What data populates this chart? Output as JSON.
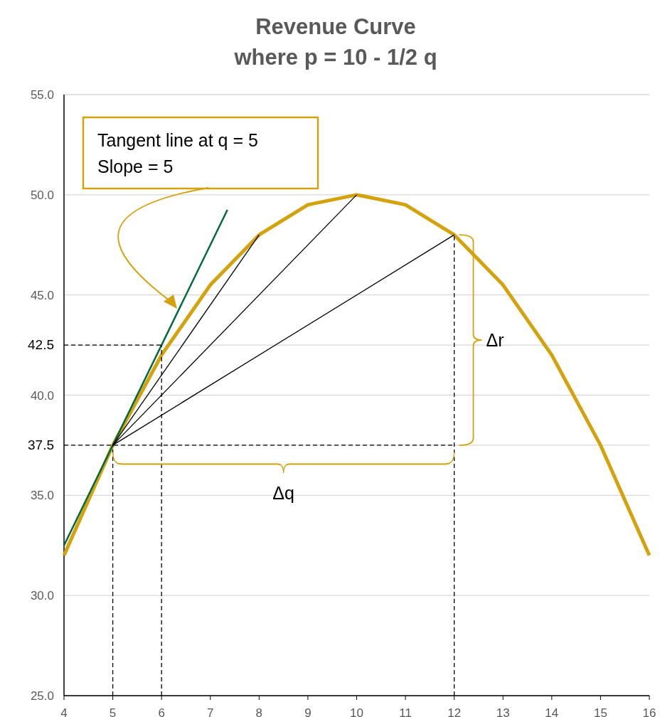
{
  "chart_data": {
    "type": "line",
    "title": "Revenue Curve",
    "subtitle": "where p = 10 - 1/2 q",
    "x": [
      4,
      5,
      6,
      7,
      8,
      9,
      10,
      11,
      12,
      13,
      14,
      15,
      16
    ],
    "series": [
      {
        "color": "#d4a20c",
        "values": [
          32,
          37.5,
          42,
          45.5,
          48,
          49.5,
          50,
          49.5,
          48,
          45.5,
          42,
          37.5,
          32
        ]
      },
      {
        "color": "#00693e",
        "x": [
          4,
          7.35
        ],
        "values": [
          32.5,
          49.25
        ]
      },
      {
        "color": "#000000",
        "x": [
          5,
          8
        ],
        "values": [
          37.5,
          48
        ]
      },
      {
        "color": "#000000",
        "x": [
          5,
          10
        ],
        "values": [
          37.5,
          50
        ]
      },
      {
        "color": "#000000",
        "x": [
          5,
          12
        ],
        "values": [
          37.5,
          48
        ]
      },
      {
        "color": "#000000",
        "x": [
          5,
          5
        ],
        "values": [
          25,
          37.5
        ],
        "line_style": "dashed"
      },
      {
        "color": "#000000",
        "x": [
          6,
          6
        ],
        "values": [
          25,
          42.5
        ],
        "line_style": "dashed"
      },
      {
        "color": "#000000",
        "x": [
          12,
          12
        ],
        "values": [
          25,
          48
        ],
        "line_style": "dashed"
      },
      {
        "color": "#000000",
        "x": [
          4,
          6
        ],
        "values": [
          42.5,
          42.5
        ],
        "line_style": "dashed"
      },
      {
        "color": "#000000",
        "x": [
          4,
          12
        ],
        "values": [
          37.5,
          37.5
        ],
        "line_style": "dashed"
      }
    ],
    "xlim": [
      4,
      16
    ],
    "xticks": [
      4,
      5,
      6,
      7,
      8,
      9,
      10,
      11,
      12,
      13,
      14,
      15,
      16
    ],
    "ylim": [
      25,
      55
    ],
    "yticks": [
      {
        "value": 25,
        "label": "25.0"
      },
      {
        "value": 30,
        "label": "30.0"
      },
      {
        "value": 35,
        "label": "35.0"
      },
      {
        "value": 37.5,
        "label": "37.5"
      },
      {
        "value": 40,
        "label": "40.0"
      },
      {
        "value": 42.5,
        "label": "42.5"
      },
      {
        "value": 45,
        "label": "45.0"
      },
      {
        "value": 50,
        "label": "50.0"
      },
      {
        "value": 55,
        "label": "55.0"
      }
    ],
    "grid": "y",
    "marker": "none",
    "line_style": "solid",
    "annotations": [
      "Tangent line at q = 5\nSlope = 5",
      "Δr",
      "Δq"
    ]
  }
}
